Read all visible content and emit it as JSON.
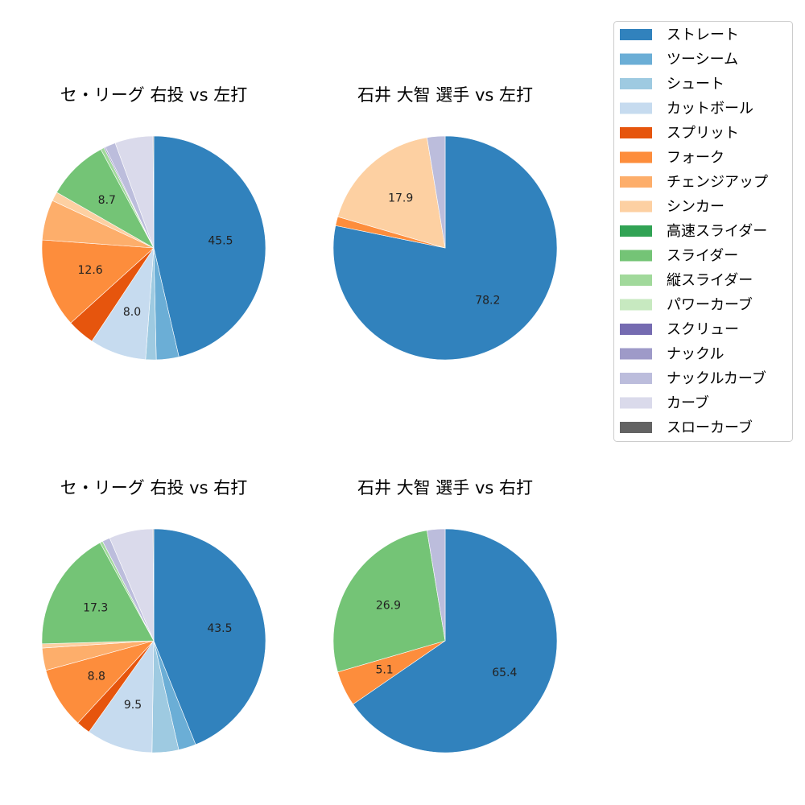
{
  "legend": {
    "items": [
      {
        "label": "ストレート",
        "color": "#3182bd"
      },
      {
        "label": "ツーシーム",
        "color": "#6baed6"
      },
      {
        "label": "シュート",
        "color": "#9ecae1"
      },
      {
        "label": "カットボール",
        "color": "#c6dbef"
      },
      {
        "label": "スプリット",
        "color": "#e6550d"
      },
      {
        "label": "フォーク",
        "color": "#fd8d3c"
      },
      {
        "label": "チェンジアップ",
        "color": "#fdae6b"
      },
      {
        "label": "シンカー",
        "color": "#fdd0a2"
      },
      {
        "label": "高速スライダー",
        "color": "#31a354"
      },
      {
        "label": "スライダー",
        "color": "#74c476"
      },
      {
        "label": "縦スライダー",
        "color": "#a1d99b"
      },
      {
        "label": "パワーカーブ",
        "color": "#c7e9c0"
      },
      {
        "label": "スクリュー",
        "color": "#756bb1"
      },
      {
        "label": "ナックル",
        "color": "#9e9ac8"
      },
      {
        "label": "ナックルカーブ",
        "color": "#bcbddc"
      },
      {
        "label": "カーブ",
        "color": "#dadaeb"
      },
      {
        "label": "スローカーブ",
        "color": "#636363"
      }
    ]
  },
  "chart_data": [
    {
      "type": "pie",
      "title": "セ・リーグ 右投 vs 左打",
      "slices": [
        {
          "category": "ストレート",
          "value": 45.5,
          "label": "45.5"
        },
        {
          "category": "ツーシーム",
          "value": 3.2,
          "label": ""
        },
        {
          "category": "シュート",
          "value": 1.5,
          "label": ""
        },
        {
          "category": "カットボール",
          "value": 8.0,
          "label": "8.0"
        },
        {
          "category": "スプリット",
          "value": 3.9,
          "label": ""
        },
        {
          "category": "フォーク",
          "value": 12.6,
          "label": "12.6"
        },
        {
          "category": "チェンジアップ",
          "value": 5.7,
          "label": ""
        },
        {
          "category": "シンカー",
          "value": 1.3,
          "label": ""
        },
        {
          "category": "スライダー",
          "value": 8.7,
          "label": "8.7"
        },
        {
          "category": "縦スライダー",
          "value": 0.5,
          "label": ""
        },
        {
          "category": "ナックル",
          "value": 0.2,
          "label": ""
        },
        {
          "category": "ナックルカーブ",
          "value": 1.5,
          "label": ""
        },
        {
          "category": "カーブ",
          "value": 5.4,
          "label": ""
        },
        {
          "category": "スローカーブ",
          "value": 0.1,
          "label": ""
        }
      ]
    },
    {
      "type": "pie",
      "title": "石井 大智 選手 vs 左打",
      "slices": [
        {
          "category": "ストレート",
          "value": 78.2,
          "label": "78.2"
        },
        {
          "category": "フォーク",
          "value": 1.3,
          "label": ""
        },
        {
          "category": "シンカー",
          "value": 17.9,
          "label": "17.9"
        },
        {
          "category": "ナックルカーブ",
          "value": 2.6,
          "label": ""
        }
      ]
    },
    {
      "type": "pie",
      "title": "セ・リーグ 右投 vs 右打",
      "slices": [
        {
          "category": "ストレート",
          "value": 43.5,
          "label": "43.5"
        },
        {
          "category": "ツーシーム",
          "value": 2.5,
          "label": ""
        },
        {
          "category": "シュート",
          "value": 3.8,
          "label": ""
        },
        {
          "category": "カットボール",
          "value": 9.5,
          "label": "9.5"
        },
        {
          "category": "スプリット",
          "value": 2.0,
          "label": ""
        },
        {
          "category": "フォーク",
          "value": 8.8,
          "label": "8.8"
        },
        {
          "category": "チェンジアップ",
          "value": 3.2,
          "label": ""
        },
        {
          "category": "シンカー",
          "value": 0.6,
          "label": ""
        },
        {
          "category": "スライダー",
          "value": 17.3,
          "label": "17.3"
        },
        {
          "category": "縦スライダー",
          "value": 0.4,
          "label": ""
        },
        {
          "category": "ナックルカーブ",
          "value": 1.1,
          "label": ""
        },
        {
          "category": "カーブ",
          "value": 6.3,
          "label": ""
        },
        {
          "category": "スローカーブ",
          "value": 0.1,
          "label": ""
        }
      ]
    },
    {
      "type": "pie",
      "title": "石井 大智 選手 vs 右打",
      "slices": [
        {
          "category": "ストレート",
          "value": 65.4,
          "label": "65.4"
        },
        {
          "category": "フォーク",
          "value": 5.1,
          "label": "5.1"
        },
        {
          "category": "スライダー",
          "value": 26.9,
          "label": "26.9"
        },
        {
          "category": "ナックルカーブ",
          "value": 2.6,
          "label": ""
        }
      ]
    }
  ]
}
